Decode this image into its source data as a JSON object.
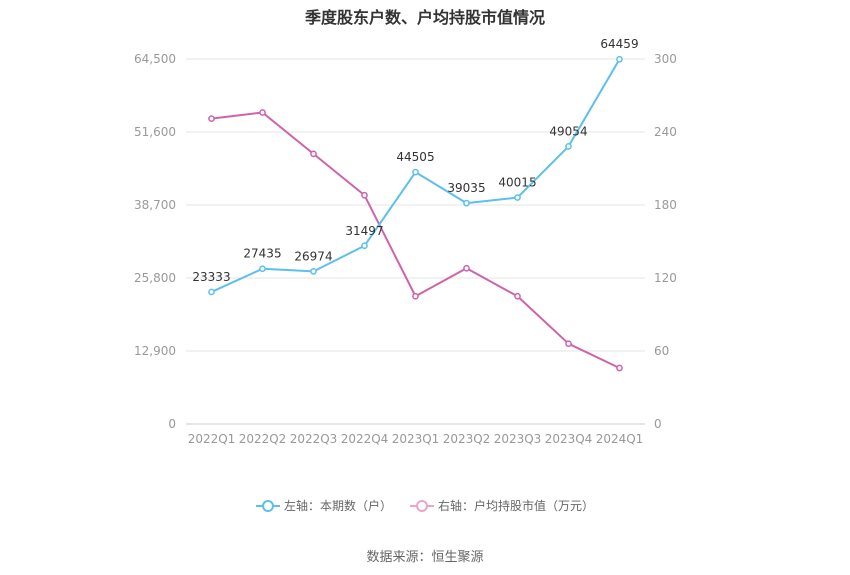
{
  "title": "季度股东户数、户均持股市值情况",
  "source": "数据来源：恒生聚源",
  "colors": {
    "left": "#5bc0eb",
    "right": "#d063a8",
    "grid": "#e6e6e6",
    "axis": "#cccccc"
  },
  "legend": {
    "left": "左轴：本期数（户）",
    "right": "右轴：户均持股市值（万元）"
  },
  "chart_data": {
    "type": "line",
    "title": "季度股东户数、户均持股市值情况",
    "categories": [
      "2022Q1",
      "2022Q2",
      "2022Q3",
      "2022Q4",
      "2023Q1",
      "2023Q2",
      "2023Q3",
      "2023Q4",
      "2024Q1"
    ],
    "left_axis": {
      "ticks": [
        "0",
        "12,900",
        "25,800",
        "38,700",
        "51,600",
        "64,500"
      ],
      "ylim": [
        0,
        64500
      ]
    },
    "right_axis": {
      "ticks": [
        "0",
        "60",
        "120",
        "180",
        "240",
        "300"
      ],
      "ylim": [
        0,
        300
      ]
    },
    "grid": true,
    "legend_position": "bottom",
    "series": [
      {
        "name": "左轴：本期数（户）",
        "axis": "left",
        "values": [
          23333,
          27435,
          26974,
          31497,
          44505,
          39035,
          40015,
          49054,
          64459
        ],
        "labels": [
          "23333",
          "27435",
          "26974",
          "31497",
          "44505",
          "39035",
          "40015",
          "49054",
          "64459"
        ]
      },
      {
        "name": "右轴：户均持股市值（万元）",
        "axis": "right",
        "values": [
          251,
          256,
          222,
          188,
          105,
          128,
          105,
          66,
          46
        ]
      }
    ]
  }
}
